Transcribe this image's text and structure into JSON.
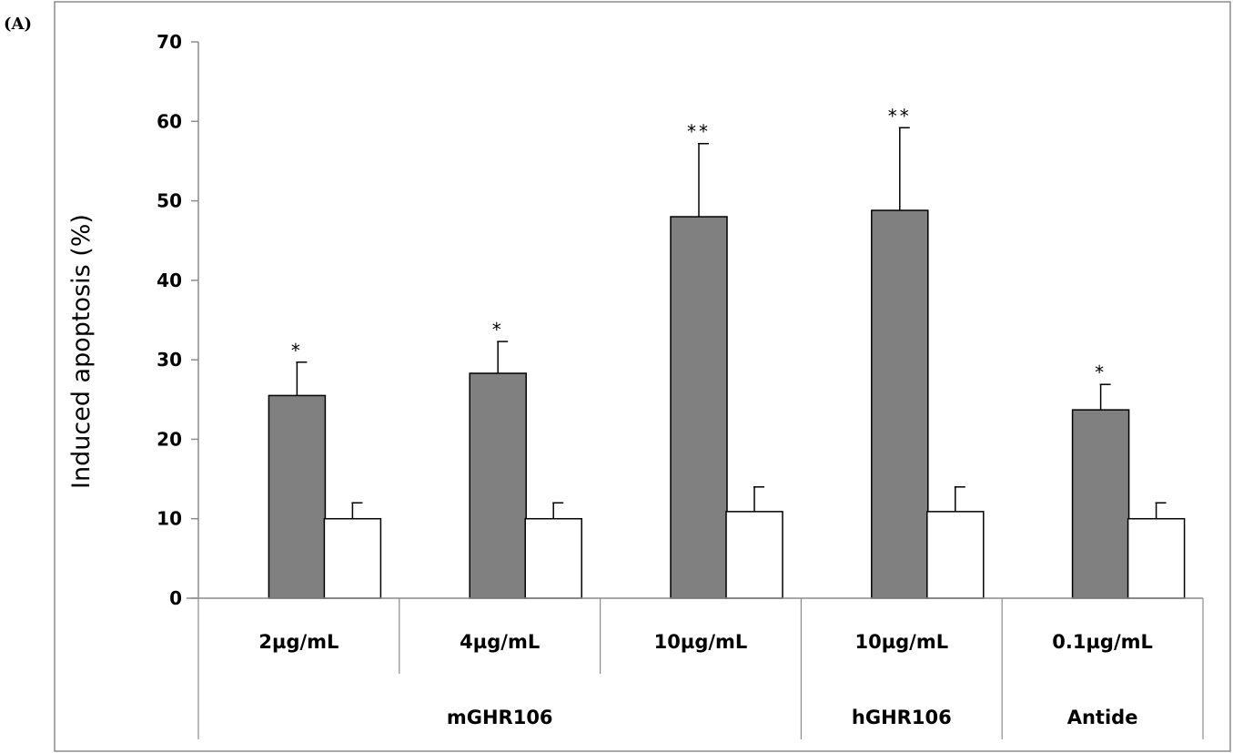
{
  "panel_label": "(A)",
  "chart_data": {
    "type": "bar",
    "title": "",
    "xlabel": "",
    "ylabel": "Induced apoptosis (%)",
    "ylim": [
      0,
      70
    ],
    "yticks": [
      0,
      10,
      20,
      30,
      40,
      50,
      60,
      70
    ],
    "categories": [
      "2µg/mL",
      "4µg/mL",
      "10µg/mL",
      "10µg/mL",
      "0.1µg/mL"
    ],
    "groups": [
      {
        "label": "mGHR106",
        "span": [
          0,
          2
        ]
      },
      {
        "label": "hGHR106",
        "span": [
          3,
          3
        ]
      },
      {
        "label": "Antide",
        "span": [
          4,
          4
        ]
      }
    ],
    "series": [
      {
        "color": "#808080",
        "values": [
          25.5,
          28.3,
          48.0,
          48.8,
          23.7
        ],
        "errors": [
          4.2,
          4.0,
          9.2,
          10.4,
          3.2
        ],
        "significance": [
          "*",
          "*",
          "**",
          "**",
          "*"
        ]
      },
      {
        "color": "#ffffff",
        "values": [
          10.0,
          10.0,
          10.9,
          10.9,
          10.0
        ],
        "errors": [
          2.0,
          2.0,
          3.1,
          3.1,
          2.0
        ],
        "significance": [
          "",
          "",
          "",
          "",
          ""
        ]
      }
    ],
    "grid": false,
    "legend": "none"
  }
}
